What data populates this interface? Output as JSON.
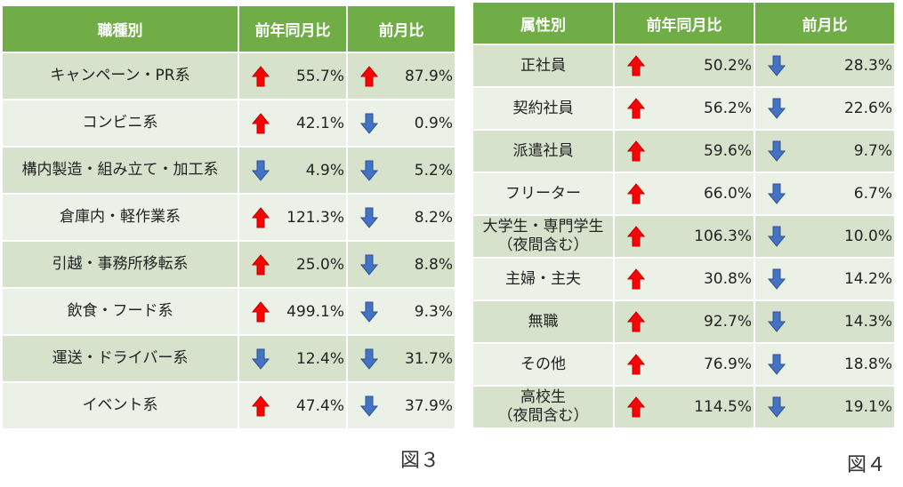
{
  "figure3": {
    "headers": [
      "職種別",
      "前年同月比",
      "前月比"
    ],
    "rows": [
      {
        "label": "キャンペーン・PR系",
        "yoy_dir": "up",
        "yoy": "55.7%",
        "mom_dir": "up",
        "mom": "87.9%"
      },
      {
        "label": "コンビニ系",
        "yoy_dir": "up",
        "yoy": "42.1%",
        "mom_dir": "down",
        "mom": "0.9%"
      },
      {
        "label": "構内製造・組み立て・加工系",
        "yoy_dir": "down",
        "yoy": "4.9%",
        "mom_dir": "down",
        "mom": "5.2%"
      },
      {
        "label": "倉庫内・軽作業系",
        "yoy_dir": "up",
        "yoy": "121.3%",
        "mom_dir": "down",
        "mom": "8.2%"
      },
      {
        "label": "引越・事務所移転系",
        "yoy_dir": "up",
        "yoy": "25.0%",
        "mom_dir": "down",
        "mom": "8.8%"
      },
      {
        "label": "飲食・フード系",
        "yoy_dir": "up",
        "yoy": "499.1%",
        "mom_dir": "down",
        "mom": "9.3%"
      },
      {
        "label": "運送・ドライバー系",
        "yoy_dir": "down",
        "yoy": "12.4%",
        "mom_dir": "down",
        "mom": "31.7%"
      },
      {
        "label": "イベント系",
        "yoy_dir": "up",
        "yoy": "47.4%",
        "mom_dir": "down",
        "mom": "37.9%"
      }
    ],
    "caption": "図３"
  },
  "figure4": {
    "headers": [
      "属性別",
      "前年同月比",
      "前月比"
    ],
    "rows": [
      {
        "label": "正社員",
        "yoy_dir": "up",
        "yoy": "50.2%",
        "mom_dir": "down",
        "mom": "28.3%"
      },
      {
        "label": "契約社員",
        "yoy_dir": "up",
        "yoy": "56.2%",
        "mom_dir": "down",
        "mom": "22.6%"
      },
      {
        "label": "派遣社員",
        "yoy_dir": "up",
        "yoy": "59.6%",
        "mom_dir": "down",
        "mom": "9.7%"
      },
      {
        "label": "フリーター",
        "yoy_dir": "up",
        "yoy": "66.0%",
        "mom_dir": "down",
        "mom": "6.7%"
      },
      {
        "label": "大学生・専門学生\n（夜間含む）",
        "yoy_dir": "up",
        "yoy": "106.3%",
        "mom_dir": "down",
        "mom": "10.0%"
      },
      {
        "label": "主婦・主夫",
        "yoy_dir": "up",
        "yoy": "30.8%",
        "mom_dir": "down",
        "mom": "14.2%"
      },
      {
        "label": "無職",
        "yoy_dir": "up",
        "yoy": "92.7%",
        "mom_dir": "down",
        "mom": "14.3%"
      },
      {
        "label": "その他",
        "yoy_dir": "up",
        "yoy": "76.9%",
        "mom_dir": "down",
        "mom": "18.8%"
      },
      {
        "label": "高校生\n（夜間含む）",
        "yoy_dir": "up",
        "yoy": "114.5%",
        "mom_dir": "down",
        "mom": "19.1%"
      }
    ],
    "caption": "図４"
  },
  "colors": {
    "header_bg": "#70ad47",
    "row_dark": "#d6e2cc",
    "row_light": "#ebf1e6",
    "arrow_up": "#ff0000",
    "arrow_down": "#4472c4"
  },
  "icons": {
    "up": "up-arrow-icon",
    "down": "down-arrow-icon"
  }
}
